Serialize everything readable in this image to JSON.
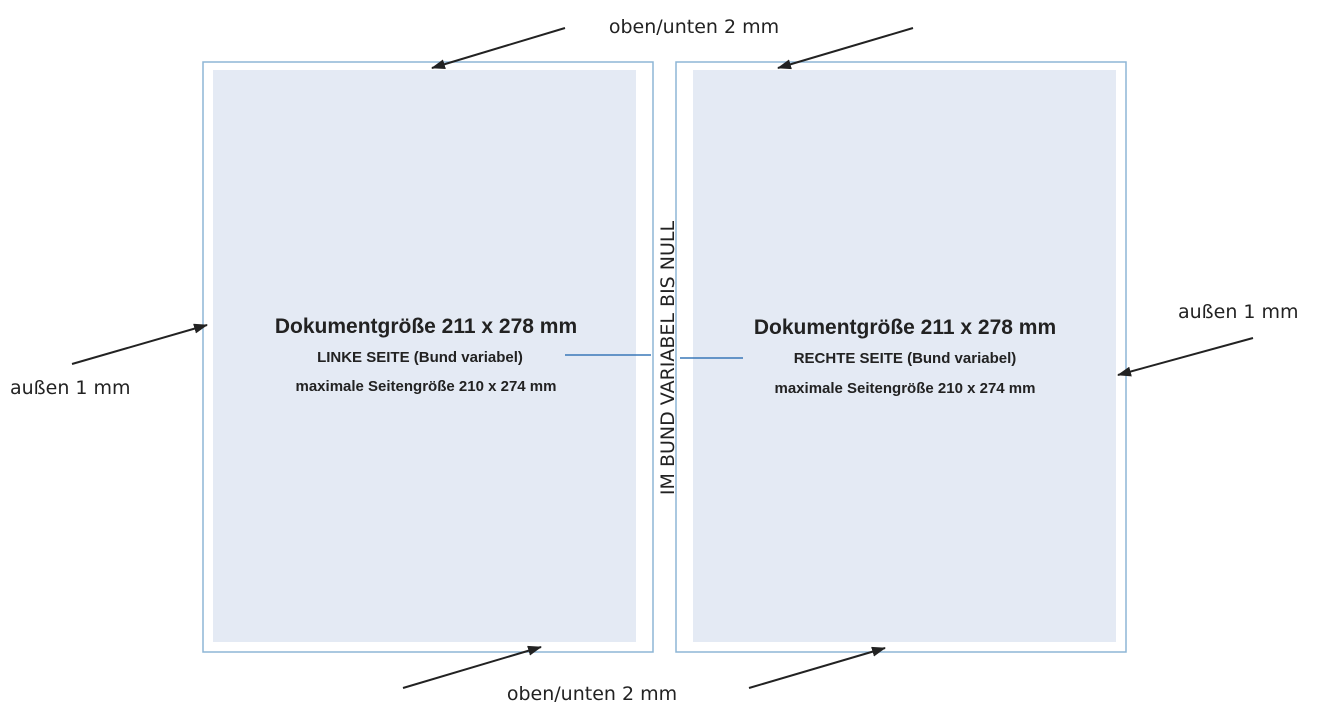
{
  "labels": {
    "top": "oben/unten 2 mm",
    "bottom": "oben/unten 2 mm",
    "left": "außen 1 mm",
    "right": "außen 1 mm",
    "gutter": "IM BUND VARIABEL BIS NULL"
  },
  "left_page": {
    "title": "Dokumentgröße 211 x 278 mm",
    "side": "LINKE SEITE (Bund variabel)",
    "max": "maximale Seitengröße 210 x 274 mm"
  },
  "right_page": {
    "title": "Dokumentgröße 211 x 278 mm",
    "side": "RECHTE SEITE (Bund variabel)",
    "max": "maximale Seitengröße 210 x 274 mm"
  }
}
